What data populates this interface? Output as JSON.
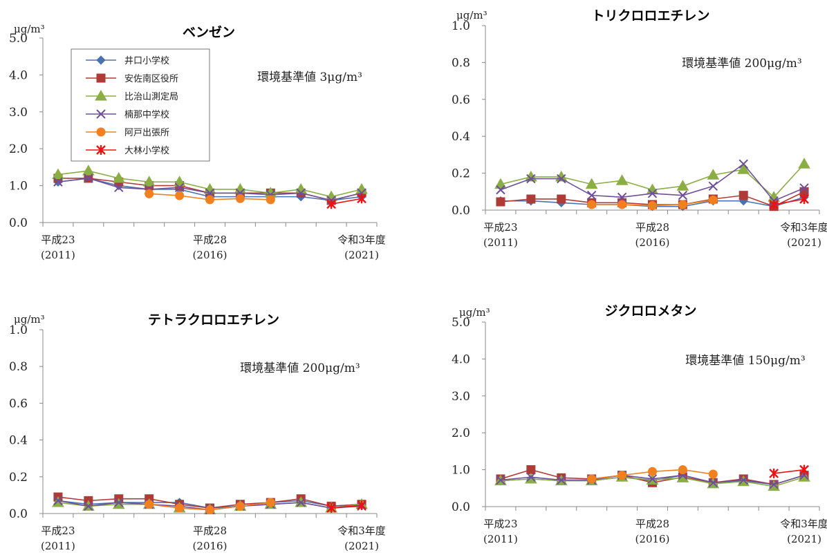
{
  "series_styles": [
    {
      "name": "井口小学校",
      "color": "#4a72b0",
      "marker": "diamond"
    },
    {
      "name": "安佐南区役所",
      "color": "#b03a36",
      "marker": "square"
    },
    {
      "name": "比治山測定局",
      "color": "#8aae44",
      "marker": "triangle"
    },
    {
      "name": "楠那中学校",
      "color": "#6f4f9a",
      "marker": "x"
    },
    {
      "name": "阿戸出張所",
      "color": "#f08020",
      "marker": "circle"
    },
    {
      "name": "大林小学校",
      "color": "#ee1111",
      "marker": "star"
    }
  ],
  "chart_data": [
    {
      "type": "line",
      "title": "ベンゼン",
      "unit_label": "μg/m³",
      "standard_label": "環境基準値 3μg/m³",
      "ylim": [
        0,
        5
      ],
      "yticks": [
        "0.0",
        "1.0",
        "2.0",
        "3.0",
        "4.0",
        "5.0"
      ],
      "x": [
        1,
        2,
        3,
        4,
        5,
        6,
        7,
        8,
        9,
        10,
        11
      ],
      "x_labels": [
        {
          "x": 1,
          "line1": "平成23",
          "line2": "(2011)"
        },
        {
          "x": 6,
          "line1": "平成28",
          "line2": "(2016)"
        },
        {
          "x": 11,
          "line1": "令和3年度",
          "line2": "(2021)"
        }
      ],
      "legend": true,
      "series": [
        {
          "name": "井口小学校",
          "values": [
            1.1,
            1.2,
            1.0,
            0.9,
            0.9,
            0.7,
            0.7,
            0.7,
            0.7,
            0.6,
            0.7
          ]
        },
        {
          "name": "安佐南区役所",
          "values": [
            1.2,
            1.2,
            1.1,
            1.0,
            1.0,
            0.8,
            0.8,
            0.8,
            0.8,
            0.6,
            0.8
          ]
        },
        {
          "name": "比治山測定局",
          "values": [
            1.3,
            1.4,
            1.2,
            1.1,
            1.1,
            0.9,
            0.9,
            0.8,
            0.9,
            0.7,
            0.9
          ]
        },
        {
          "name": "楠那中学校",
          "values": [
            1.1,
            1.2,
            0.95,
            0.9,
            0.95,
            0.8,
            0.8,
            0.75,
            0.8,
            0.6,
            0.8
          ]
        },
        {
          "name": "阿戸出張所",
          "values": [
            null,
            null,
            null,
            0.78,
            0.73,
            0.62,
            0.65,
            0.62,
            null,
            null,
            null
          ]
        },
        {
          "name": "大林小学校",
          "values": [
            null,
            null,
            null,
            null,
            null,
            null,
            null,
            null,
            null,
            0.5,
            0.65
          ]
        }
      ]
    },
    {
      "type": "line",
      "title": "トリクロロエチレン",
      "unit_label": "μg/m³",
      "standard_label": "環境基準値 200μg/m³",
      "ylim": [
        0,
        1.0
      ],
      "yticks": [
        "0.0",
        "0.2",
        "0.4",
        "0.6",
        "0.8",
        "1.0"
      ],
      "x": [
        1,
        2,
        3,
        4,
        5,
        6,
        7,
        8,
        9,
        10,
        11
      ],
      "x_labels": [
        {
          "x": 1,
          "line1": "平成23",
          "line2": "(2011)"
        },
        {
          "x": 6,
          "line1": "平成28",
          "line2": "(2016)"
        },
        {
          "x": 11,
          "line1": "令和3年度",
          "line2": "(2021)"
        }
      ],
      "legend": false,
      "series": [
        {
          "name": "井口小学校",
          "values": [
            0.05,
            0.05,
            0.04,
            0.03,
            0.03,
            0.02,
            0.02,
            0.05,
            0.05,
            0.02,
            0.07
          ]
        },
        {
          "name": "安佐南区役所",
          "values": [
            0.045,
            0.06,
            0.06,
            0.04,
            0.04,
            0.03,
            0.03,
            0.06,
            0.08,
            0.02,
            0.1
          ]
        },
        {
          "name": "比治山測定局",
          "values": [
            0.14,
            0.18,
            0.18,
            0.14,
            0.16,
            0.11,
            0.13,
            0.19,
            0.22,
            0.07,
            0.25
          ]
        },
        {
          "name": "楠那中学校",
          "values": [
            0.11,
            0.17,
            0.17,
            0.08,
            0.07,
            0.09,
            0.08,
            0.13,
            0.25,
            0.05,
            0.12
          ]
        },
        {
          "name": "阿戸出張所",
          "values": [
            null,
            null,
            null,
            0.03,
            0.03,
            0.025,
            0.03,
            0.055,
            null,
            null,
            null
          ]
        },
        {
          "name": "大林小学校",
          "values": [
            null,
            null,
            null,
            null,
            null,
            null,
            null,
            null,
            null,
            0.03,
            0.06
          ]
        }
      ]
    },
    {
      "type": "line",
      "title": "テトラクロロエチレン",
      "unit_label": "μg/m³",
      "standard_label": "環境基準値 200μg/m³",
      "ylim": [
        0,
        1.0
      ],
      "yticks": [
        "0.0",
        "0.2",
        "0.4",
        "0.6",
        "0.8",
        "1.0"
      ],
      "x": [
        1,
        2,
        3,
        4,
        5,
        6,
        7,
        8,
        9,
        10,
        11
      ],
      "x_labels": [
        {
          "x": 1,
          "line1": "平成23",
          "line2": "(2011)"
        },
        {
          "x": 6,
          "line1": "平成28",
          "line2": "(2016)"
        },
        {
          "x": 11,
          "line1": "令和3年度",
          "line2": "(2021)"
        }
      ],
      "legend": false,
      "series": [
        {
          "name": "井口小学校",
          "values": [
            0.07,
            0.05,
            0.06,
            0.06,
            0.06,
            0.03,
            0.04,
            0.06,
            0.07,
            0.04,
            0.05
          ]
        },
        {
          "name": "安佐南区役所",
          "values": [
            0.09,
            0.07,
            0.08,
            0.08,
            0.05,
            0.03,
            0.05,
            0.06,
            0.08,
            0.04,
            0.05
          ]
        },
        {
          "name": "比治山測定局",
          "values": [
            0.06,
            0.04,
            0.05,
            0.05,
            0.03,
            0.02,
            0.04,
            0.05,
            0.06,
            0.03,
            0.05
          ]
        },
        {
          "name": "楠那中学校",
          "values": [
            0.07,
            0.04,
            0.06,
            0.05,
            0.04,
            0.02,
            0.04,
            0.05,
            0.06,
            0.03,
            0.04
          ]
        },
        {
          "name": "阿戸出張所",
          "values": [
            null,
            null,
            null,
            0.05,
            0.03,
            0.02,
            0.04,
            0.06,
            null,
            null,
            null
          ]
        },
        {
          "name": "大林小学校",
          "values": [
            null,
            null,
            null,
            null,
            null,
            null,
            null,
            null,
            null,
            0.03,
            0.045
          ]
        }
      ]
    },
    {
      "type": "line",
      "title": "ジクロロメタン",
      "unit_label": "μg/m³",
      "standard_label": "環境基準値 150μg/m³",
      "ylim": [
        0,
        5
      ],
      "yticks": [
        "0.0",
        "1.0",
        "2.0",
        "3.0",
        "4.0",
        "5.0"
      ],
      "x": [
        1,
        2,
        3,
        4,
        5,
        6,
        7,
        8,
        9,
        10,
        11
      ],
      "x_labels": [
        {
          "x": 1,
          "line1": "平成23",
          "line2": "(2011)"
        },
        {
          "x": 6,
          "line1": "平成28",
          "line2": "(2016)"
        },
        {
          "x": 11,
          "line1": "令和3年度",
          "line2": "(2021)"
        }
      ],
      "legend": false,
      "series": [
        {
          "name": "井口小学校",
          "values": [
            0.7,
            0.75,
            0.7,
            0.7,
            0.8,
            0.7,
            0.85,
            0.65,
            0.7,
            0.6,
            0.85
          ]
        },
        {
          "name": "安佐南区役所",
          "values": [
            0.75,
            1.0,
            0.78,
            0.75,
            0.85,
            0.65,
            0.8,
            0.65,
            0.75,
            0.6,
            0.85
          ]
        },
        {
          "name": "比治山測定局",
          "values": [
            0.7,
            0.75,
            0.7,
            0.7,
            0.8,
            0.72,
            0.78,
            0.62,
            0.68,
            0.55,
            0.8
          ]
        },
        {
          "name": "楠那中学校",
          "values": [
            0.72,
            0.8,
            0.72,
            0.72,
            0.85,
            0.75,
            0.85,
            0.65,
            0.72,
            0.6,
            0.85
          ]
        },
        {
          "name": "阿戸出張所",
          "values": [
            null,
            null,
            null,
            0.75,
            0.85,
            0.95,
            1.0,
            0.88,
            null,
            null,
            null
          ]
        },
        {
          "name": "大林小学校",
          "values": [
            null,
            null,
            null,
            null,
            null,
            null,
            null,
            null,
            null,
            0.9,
            1.0
          ]
        }
      ]
    }
  ]
}
